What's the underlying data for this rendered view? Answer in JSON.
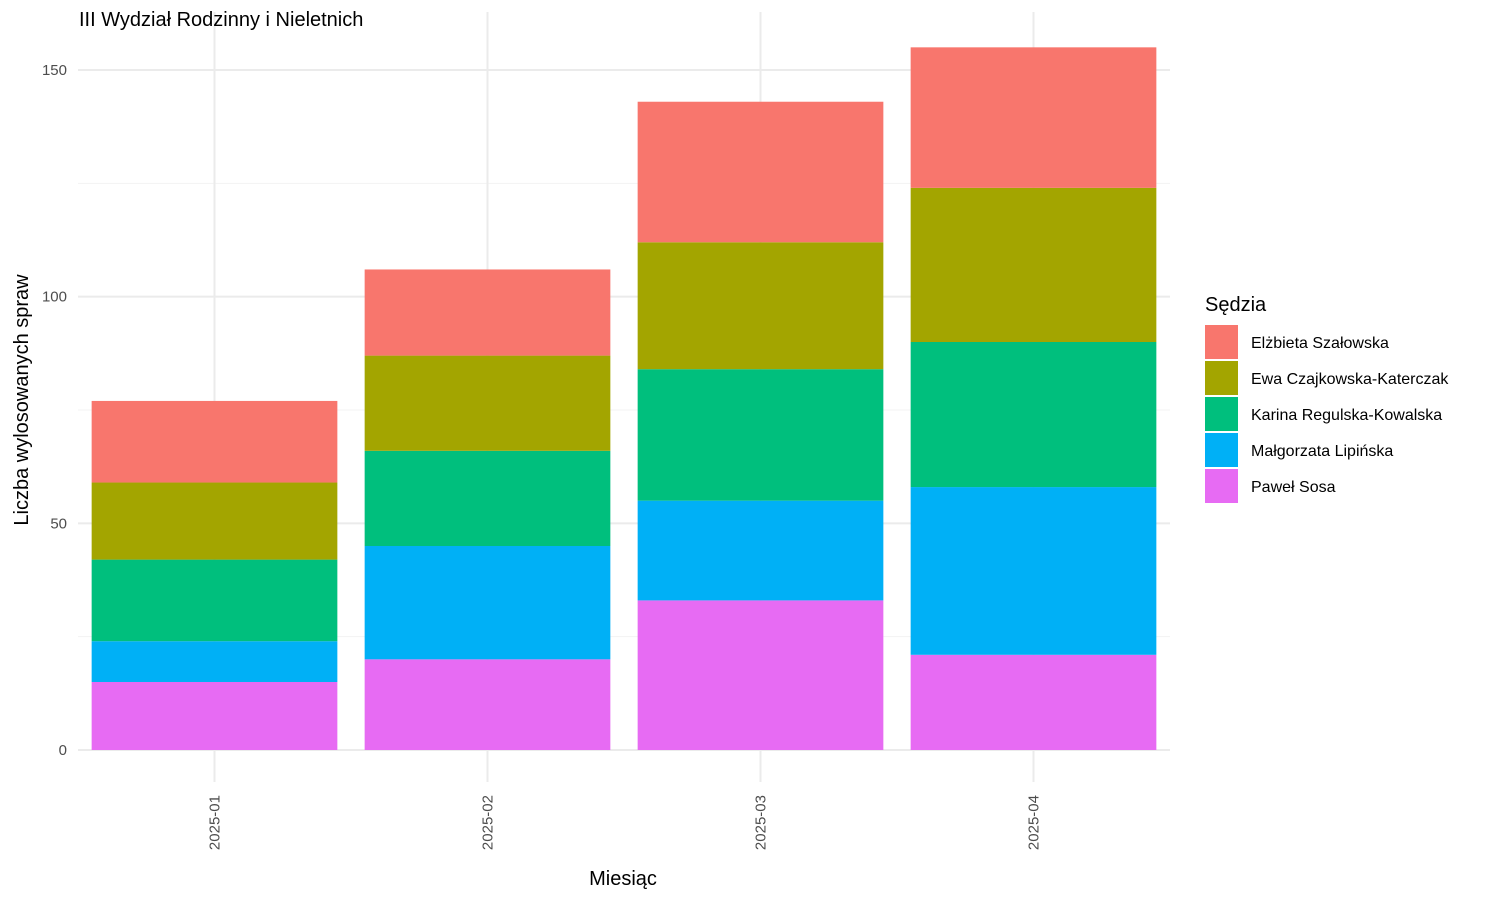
{
  "chart_data": {
    "type": "bar",
    "stacked": true,
    "title": "III Wydział Rodzinny i Nieletnich",
    "xlabel": "Miesiąc",
    "ylabel": "Liczba wylosowanych spraw",
    "ylim": [
      0,
      155
    ],
    "yticks": [
      0,
      50,
      100,
      150
    ],
    "grid": true,
    "legend_title": "Sędzia",
    "legend_position": "right",
    "categories": [
      "2025-01",
      "2025-02",
      "2025-03",
      "2025-04"
    ],
    "series": [
      {
        "name": "Elżbieta Szałowska",
        "color": "#F8766D",
        "values": [
          18,
          19,
          31,
          31
        ]
      },
      {
        "name": "Ewa Czajkowska-Katerczak",
        "color": "#A3A500",
        "values": [
          17,
          21,
          28,
          34
        ]
      },
      {
        "name": "Karina Regulska-Kowalska",
        "color": "#00BF7D",
        "values": [
          18,
          21,
          29,
          32
        ]
      },
      {
        "name": "Małgorzata Lipińska",
        "color": "#00B0F6",
        "values": [
          9,
          25,
          22,
          37
        ]
      },
      {
        "name": "Paweł Sosa",
        "color": "#E76BF3",
        "values": [
          15,
          20,
          33,
          21
        ]
      }
    ]
  }
}
